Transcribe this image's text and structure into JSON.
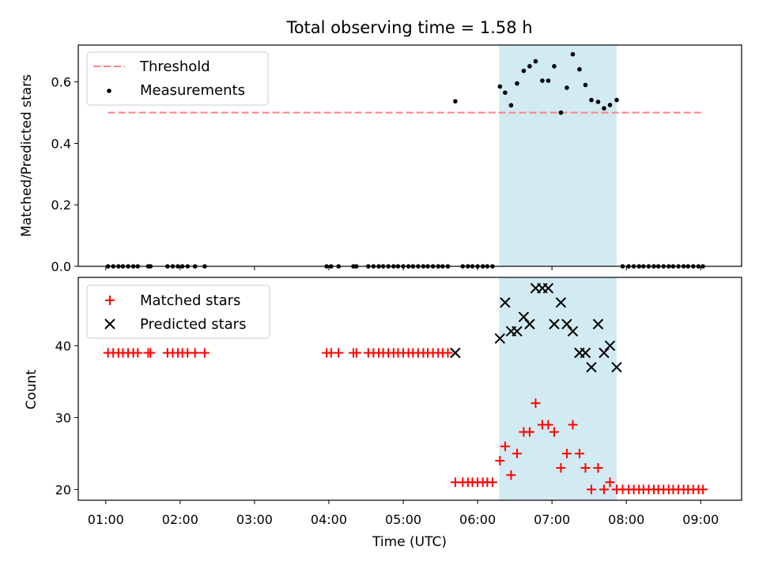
{
  "chart_data": {
    "title": "Total observing time = 1.58 h",
    "xlabel": "Time (UTC)",
    "xticks": [
      "01:00",
      "02:00",
      "03:00",
      "04:00",
      "05:00",
      "06:00",
      "07:00",
      "08:00",
      "09:00"
    ],
    "xlim_hours": [
      0.63,
      9.55
    ],
    "highlight_span_hours": [
      6.29,
      7.87
    ],
    "colors": {
      "threshold": "#ff7f7f",
      "measurements": "#000000",
      "matched": "#ff0000",
      "predicted": "#000000",
      "highlight": "#add8e6"
    },
    "panels": [
      {
        "type": "scatter",
        "ylabel": "Matched/Predicted stars",
        "ylim": [
          0,
          0.72
        ],
        "yticks": [
          "0.0",
          "0.2",
          "0.4",
          "0.6"
        ],
        "ytick_values": [
          0,
          0.2,
          0.4,
          0.6
        ],
        "legend_position": "upper-left",
        "threshold": {
          "name": "Threshold",
          "value": 0.5,
          "x_range": [
            1.03,
            9.03
          ]
        },
        "measurements": {
          "name": "Measurements",
          "points": [
            [
              1.03,
              0
            ],
            [
              1.1,
              0
            ],
            [
              1.17,
              0
            ],
            [
              1.23,
              0
            ],
            [
              1.3,
              0
            ],
            [
              1.37,
              0
            ],
            [
              1.43,
              0
            ],
            [
              1.57,
              0
            ],
            [
              1.6,
              0
            ],
            [
              1.83,
              0
            ],
            [
              1.9,
              0
            ],
            [
              1.97,
              0
            ],
            [
              2.03,
              0
            ],
            [
              2.1,
              0
            ],
            [
              2.2,
              0
            ],
            [
              2.33,
              0
            ],
            [
              3.97,
              0
            ],
            [
              4.03,
              0
            ],
            [
              4.13,
              0
            ],
            [
              4.33,
              0
            ],
            [
              4.37,
              0
            ],
            [
              4.53,
              0
            ],
            [
              4.6,
              0
            ],
            [
              4.67,
              0
            ],
            [
              4.73,
              0
            ],
            [
              4.8,
              0
            ],
            [
              4.87,
              0
            ],
            [
              4.93,
              0
            ],
            [
              5.0,
              0
            ],
            [
              5.07,
              0
            ],
            [
              5.13,
              0
            ],
            [
              5.2,
              0
            ],
            [
              5.27,
              0
            ],
            [
              5.33,
              0
            ],
            [
              5.4,
              0
            ],
            [
              5.47,
              0
            ],
            [
              5.53,
              0
            ],
            [
              5.6,
              0
            ],
            [
              5.7,
              0.537
            ],
            [
              5.8,
              0
            ],
            [
              5.87,
              0
            ],
            [
              5.93,
              0
            ],
            [
              6.0,
              0
            ],
            [
              6.07,
              0
            ],
            [
              6.13,
              0
            ],
            [
              6.2,
              0
            ],
            [
              6.3,
              0.585
            ],
            [
              6.37,
              0.565
            ],
            [
              6.45,
              0.524
            ],
            [
              6.53,
              0.595
            ],
            [
              6.62,
              0.636
            ],
            [
              6.7,
              0.651
            ],
            [
              6.78,
              0.667
            ],
            [
              6.87,
              0.604
            ],
            [
              6.95,
              0.604
            ],
            [
              7.03,
              0.651
            ],
            [
              7.12,
              0.5
            ],
            [
              7.2,
              0.581
            ],
            [
              7.28,
              0.69
            ],
            [
              7.37,
              0.641
            ],
            [
              7.45,
              0.59
            ],
            [
              7.53,
              0.541
            ],
            [
              7.62,
              0.535
            ],
            [
              7.7,
              0.514
            ],
            [
              7.78,
              0.525
            ],
            [
              7.87,
              0.541
            ],
            [
              7.95,
              0
            ],
            [
              8.03,
              0
            ],
            [
              8.1,
              0
            ],
            [
              8.17,
              0
            ],
            [
              8.23,
              0
            ],
            [
              8.3,
              0
            ],
            [
              8.37,
              0
            ],
            [
              8.43,
              0
            ],
            [
              8.5,
              0
            ],
            [
              8.57,
              0
            ],
            [
              8.63,
              0
            ],
            [
              8.7,
              0
            ],
            [
              8.77,
              0
            ],
            [
              8.83,
              0
            ],
            [
              8.9,
              0
            ],
            [
              8.97,
              0
            ],
            [
              9.03,
              0
            ]
          ]
        }
      },
      {
        "type": "scatter",
        "ylabel": "Count",
        "ylim": [
          18.5,
          49.5
        ],
        "yticks": [
          "20",
          "30",
          "40"
        ],
        "ytick_values": [
          20,
          30,
          40
        ],
        "legend_position": "upper-left",
        "matched": {
          "name": "Matched stars",
          "points": [
            [
              1.03,
              39
            ],
            [
              1.1,
              39
            ],
            [
              1.17,
              39
            ],
            [
              1.23,
              39
            ],
            [
              1.3,
              39
            ],
            [
              1.37,
              39
            ],
            [
              1.43,
              39
            ],
            [
              1.57,
              39
            ],
            [
              1.6,
              39
            ],
            [
              1.83,
              39
            ],
            [
              1.9,
              39
            ],
            [
              1.97,
              39
            ],
            [
              2.03,
              39
            ],
            [
              2.1,
              39
            ],
            [
              2.2,
              39
            ],
            [
              2.33,
              39
            ],
            [
              3.97,
              39
            ],
            [
              4.03,
              39
            ],
            [
              4.13,
              39
            ],
            [
              4.33,
              39
            ],
            [
              4.37,
              39
            ],
            [
              4.53,
              39
            ],
            [
              4.6,
              39
            ],
            [
              4.67,
              39
            ],
            [
              4.73,
              39
            ],
            [
              4.8,
              39
            ],
            [
              4.87,
              39
            ],
            [
              4.93,
              39
            ],
            [
              5.0,
              39
            ],
            [
              5.07,
              39
            ],
            [
              5.13,
              39
            ],
            [
              5.2,
              39
            ],
            [
              5.27,
              39
            ],
            [
              5.33,
              39
            ],
            [
              5.4,
              39
            ],
            [
              5.47,
              39
            ],
            [
              5.53,
              39
            ],
            [
              5.6,
              39
            ],
            [
              5.7,
              21
            ],
            [
              5.8,
              21
            ],
            [
              5.87,
              21
            ],
            [
              5.93,
              21
            ],
            [
              6.0,
              21
            ],
            [
              6.07,
              21
            ],
            [
              6.13,
              21
            ],
            [
              6.2,
              21
            ],
            [
              6.3,
              24
            ],
            [
              6.37,
              26
            ],
            [
              6.45,
              22
            ],
            [
              6.53,
              25
            ],
            [
              6.62,
              28
            ],
            [
              6.7,
              28
            ],
            [
              6.78,
              32
            ],
            [
              6.87,
              29
            ],
            [
              6.95,
              29
            ],
            [
              7.03,
              28
            ],
            [
              7.12,
              23
            ],
            [
              7.2,
              25
            ],
            [
              7.28,
              29
            ],
            [
              7.37,
              25
            ],
            [
              7.45,
              23
            ],
            [
              7.53,
              20
            ],
            [
              7.62,
              23
            ],
            [
              7.7,
              20
            ],
            [
              7.78,
              21
            ],
            [
              7.87,
              20
            ],
            [
              7.95,
              20
            ],
            [
              8.03,
              20
            ],
            [
              8.1,
              20
            ],
            [
              8.17,
              20
            ],
            [
              8.23,
              20
            ],
            [
              8.3,
              20
            ],
            [
              8.37,
              20
            ],
            [
              8.43,
              20
            ],
            [
              8.5,
              20
            ],
            [
              8.57,
              20
            ],
            [
              8.63,
              20
            ],
            [
              8.7,
              20
            ],
            [
              8.77,
              20
            ],
            [
              8.83,
              20
            ],
            [
              8.9,
              20
            ],
            [
              8.97,
              20
            ],
            [
              9.03,
              20
            ]
          ]
        },
        "predicted": {
          "name": "Predicted stars",
          "points": [
            [
              5.7,
              39
            ],
            [
              6.3,
              41
            ],
            [
              6.37,
              46
            ],
            [
              6.45,
              42
            ],
            [
              6.53,
              42
            ],
            [
              6.62,
              44
            ],
            [
              6.7,
              43
            ],
            [
              6.78,
              48
            ],
            [
              6.87,
              48
            ],
            [
              6.95,
              48
            ],
            [
              7.03,
              43
            ],
            [
              7.12,
              46
            ],
            [
              7.2,
              43
            ],
            [
              7.28,
              42
            ],
            [
              7.37,
              39
            ],
            [
              7.45,
              39
            ],
            [
              7.53,
              37
            ],
            [
              7.62,
              43
            ],
            [
              7.7,
              39
            ],
            [
              7.78,
              40
            ],
            [
              7.87,
              37
            ]
          ]
        }
      }
    ]
  }
}
